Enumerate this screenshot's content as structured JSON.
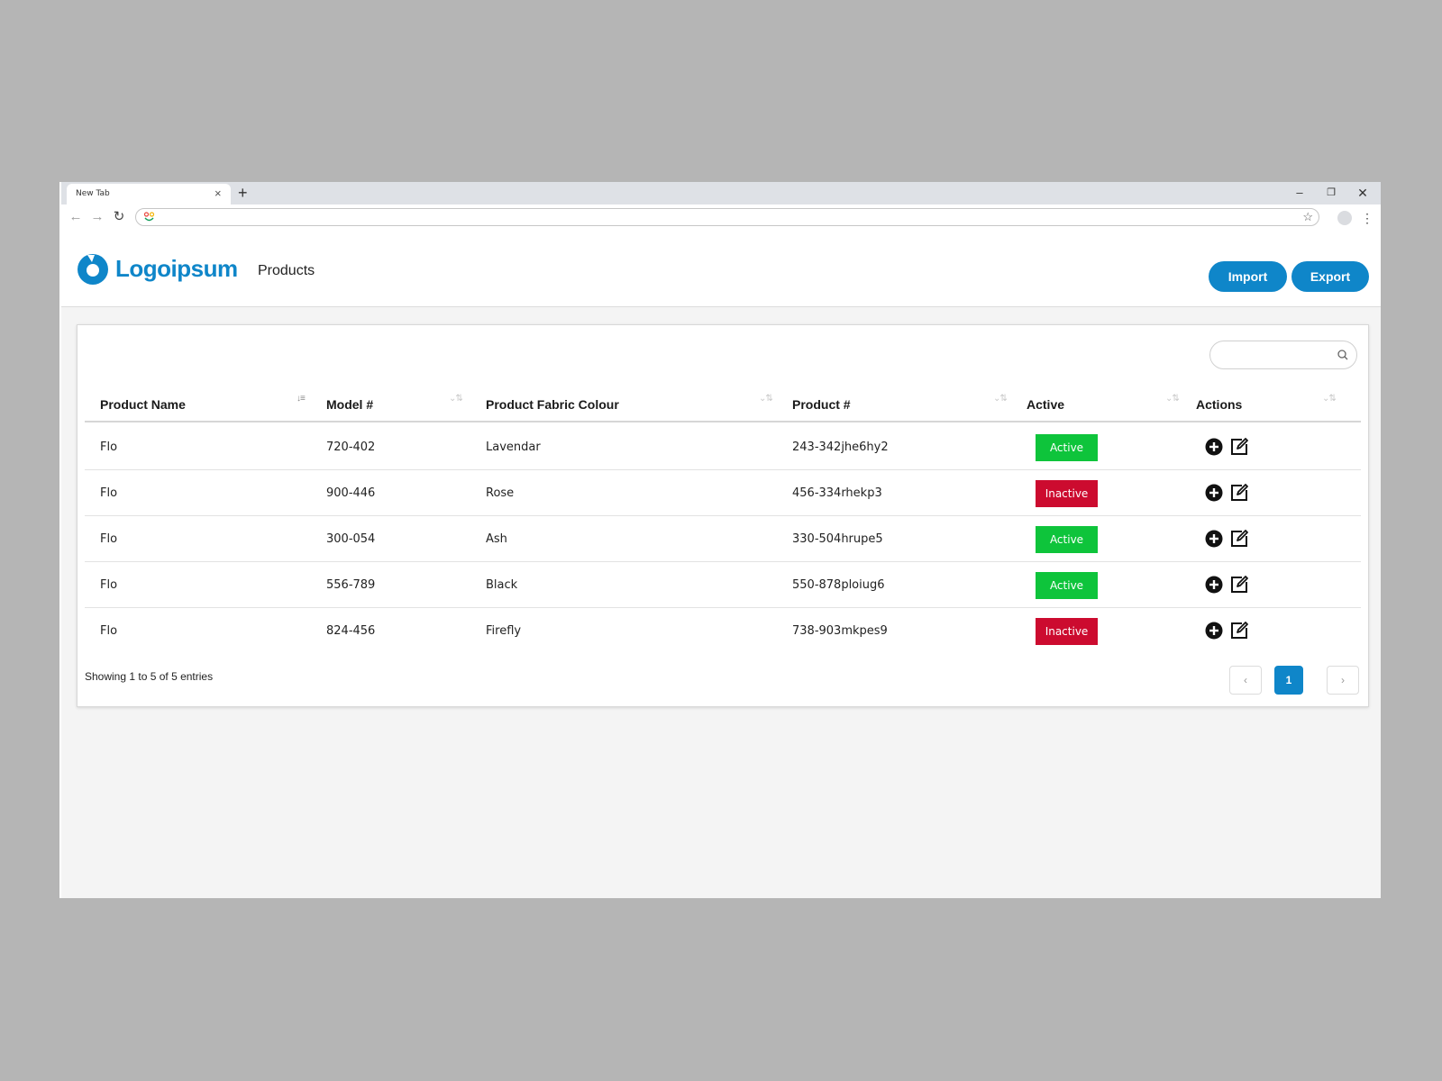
{
  "browser": {
    "tab_title": "New Tab",
    "tab_close": "×",
    "new_tab": "+",
    "minimize": "–",
    "restore": "❐",
    "close": "✕",
    "back": "←",
    "forward": "→",
    "reload": "↻",
    "address_value": "",
    "bookmark": "☆",
    "menu": "⋮"
  },
  "header": {
    "brand": "Logoipsum",
    "page_title": "Products",
    "import_label": "Import",
    "export_label": "Export",
    "accent_color": "#0f86c9"
  },
  "table": {
    "search_value": "",
    "columns": [
      {
        "label": "Product Name",
        "sort": "↓≡"
      },
      {
        "label": "Model #",
        "sort": "⌄⇅"
      },
      {
        "label": "Product Fabric Colour",
        "sort": "⌄⇅"
      },
      {
        "label": "Product #",
        "sort": "⌄⇅"
      },
      {
        "label": "Active",
        "sort": "⌄⇅"
      },
      {
        "label": "Actions",
        "sort": "⌄⇅"
      }
    ],
    "rows": [
      {
        "name": "Flo",
        "model": "720-402",
        "colour": "Lavendar",
        "product": "243-342jhe6hy2",
        "status": "Active"
      },
      {
        "name": "Flo",
        "model": "900-446",
        "colour": "Rose",
        "product": "456-334rhekp3",
        "status": "Inactive"
      },
      {
        "name": "Flo",
        "model": "300-054",
        "colour": "Ash",
        "product": "330-504hrupe5",
        "status": "Active"
      },
      {
        "name": "Flo",
        "model": "556-789",
        "colour": "Black",
        "product": "550-878ploiug6",
        "status": "Active"
      },
      {
        "name": "Flo",
        "model": "824-456",
        "colour": "Firefly",
        "product": "738-903mkpes9",
        "status": "Inactive"
      }
    ],
    "status_colors": {
      "Active": "#0ec43b",
      "Inactive": "#cc0b2f"
    },
    "info": "Showing 1 to 5 of 5 entries",
    "pagination": {
      "prev": "‹",
      "current": "1",
      "next": "›"
    }
  }
}
